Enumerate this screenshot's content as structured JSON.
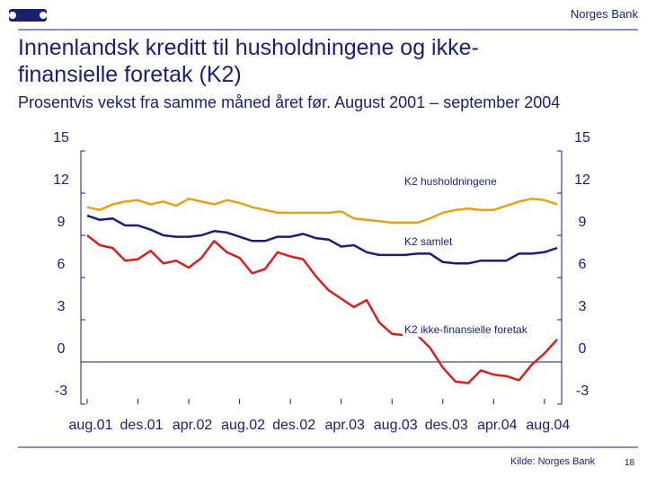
{
  "header": {
    "brand": "Norges Bank"
  },
  "chart_data": {
    "type": "line",
    "title": "Innenlandsk kreditt til husholdningene og ikke-finansielle foretak (K2)",
    "subtitle": "Prosentvis vekst fra samme måned året før. August 2001 – september 2004",
    "x": [
      "aug.01",
      null,
      null,
      null,
      "des.01",
      null,
      null,
      null,
      "apr.02",
      null,
      null,
      null,
      "aug.02",
      null,
      null,
      null,
      "des.02",
      null,
      null,
      null,
      "apr.03",
      null,
      null,
      null,
      "aug.03",
      null,
      null,
      null,
      "des.03",
      null,
      null,
      null,
      "apr.04",
      null,
      null,
      null,
      "aug.04",
      null
    ],
    "series": [
      {
        "name": "K2 husholdningene",
        "color": "#e3a21a",
        "values": [
          11.0,
          10.8,
          11.2,
          11.4,
          11.5,
          11.2,
          11.4,
          11.1,
          11.6,
          11.4,
          11.2,
          11.5,
          11.3,
          11.0,
          10.8,
          10.6,
          10.6,
          10.6,
          10.6,
          10.6,
          10.7,
          10.2,
          10.1,
          10.0,
          9.9,
          9.9,
          9.9,
          10.2,
          10.6,
          10.8,
          10.9,
          10.8,
          10.8,
          11.1,
          11.4,
          11.6,
          11.5,
          11.2
        ]
      },
      {
        "name": "K2 samlet",
        "color": "#1a1f6e",
        "values": [
          10.4,
          10.1,
          10.2,
          9.7,
          9.7,
          9.4,
          9.0,
          8.9,
          8.9,
          9.0,
          9.3,
          9.2,
          8.9,
          8.6,
          8.6,
          8.9,
          8.9,
          9.1,
          8.8,
          8.7,
          8.2,
          8.3,
          7.8,
          7.6,
          7.6,
          7.6,
          7.7,
          7.7,
          7.1,
          7.0,
          7.0,
          7.2,
          7.2,
          7.2,
          7.7,
          7.7,
          7.8,
          8.1
        ]
      },
      {
        "name": "K2 ikke-finansielle foretak",
        "color": "#d42020",
        "values": [
          9.0,
          8.3,
          8.1,
          7.2,
          7.3,
          7.9,
          7.0,
          7.2,
          6.7,
          7.4,
          8.6,
          7.8,
          7.4,
          6.3,
          6.6,
          7.8,
          7.5,
          7.3,
          6.1,
          5.1,
          4.5,
          3.9,
          4.4,
          2.8,
          2.0,
          1.9,
          1.9,
          1.0,
          -0.4,
          -1.4,
          -1.5,
          -0.6,
          -0.9,
          -1.0,
          -1.3,
          -0.2,
          0.6,
          1.6
        ]
      }
    ],
    "ylim": [
      -3,
      15
    ],
    "yticks": [
      -3,
      0,
      3,
      6,
      9,
      12,
      15
    ],
    "y2lim": [
      -3,
      15
    ],
    "y2ticks": [
      -3,
      0,
      3,
      6,
      9,
      12,
      15
    ],
    "source": "Kilde: Norges Bank",
    "page_number": 18
  }
}
